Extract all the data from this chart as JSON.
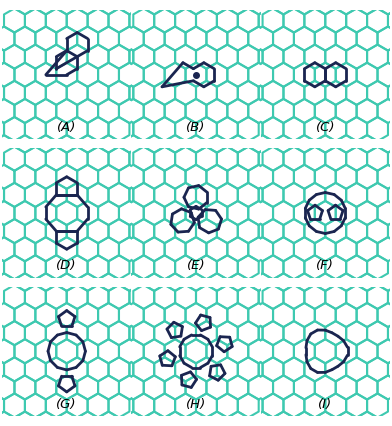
{
  "bg_color": "#ffffff",
  "hex_color": "#3ec9b0",
  "defect_color": "#1a2550",
  "hex_lw": 1.5,
  "defect_lw": 2.0,
  "labels": [
    "(A)",
    "(B)",
    "(C)",
    "(D)",
    "(E)",
    "(F)",
    "(G)",
    "(H)",
    "(I)"
  ],
  "label_fontsize": 9.5,
  "r": 0.28
}
